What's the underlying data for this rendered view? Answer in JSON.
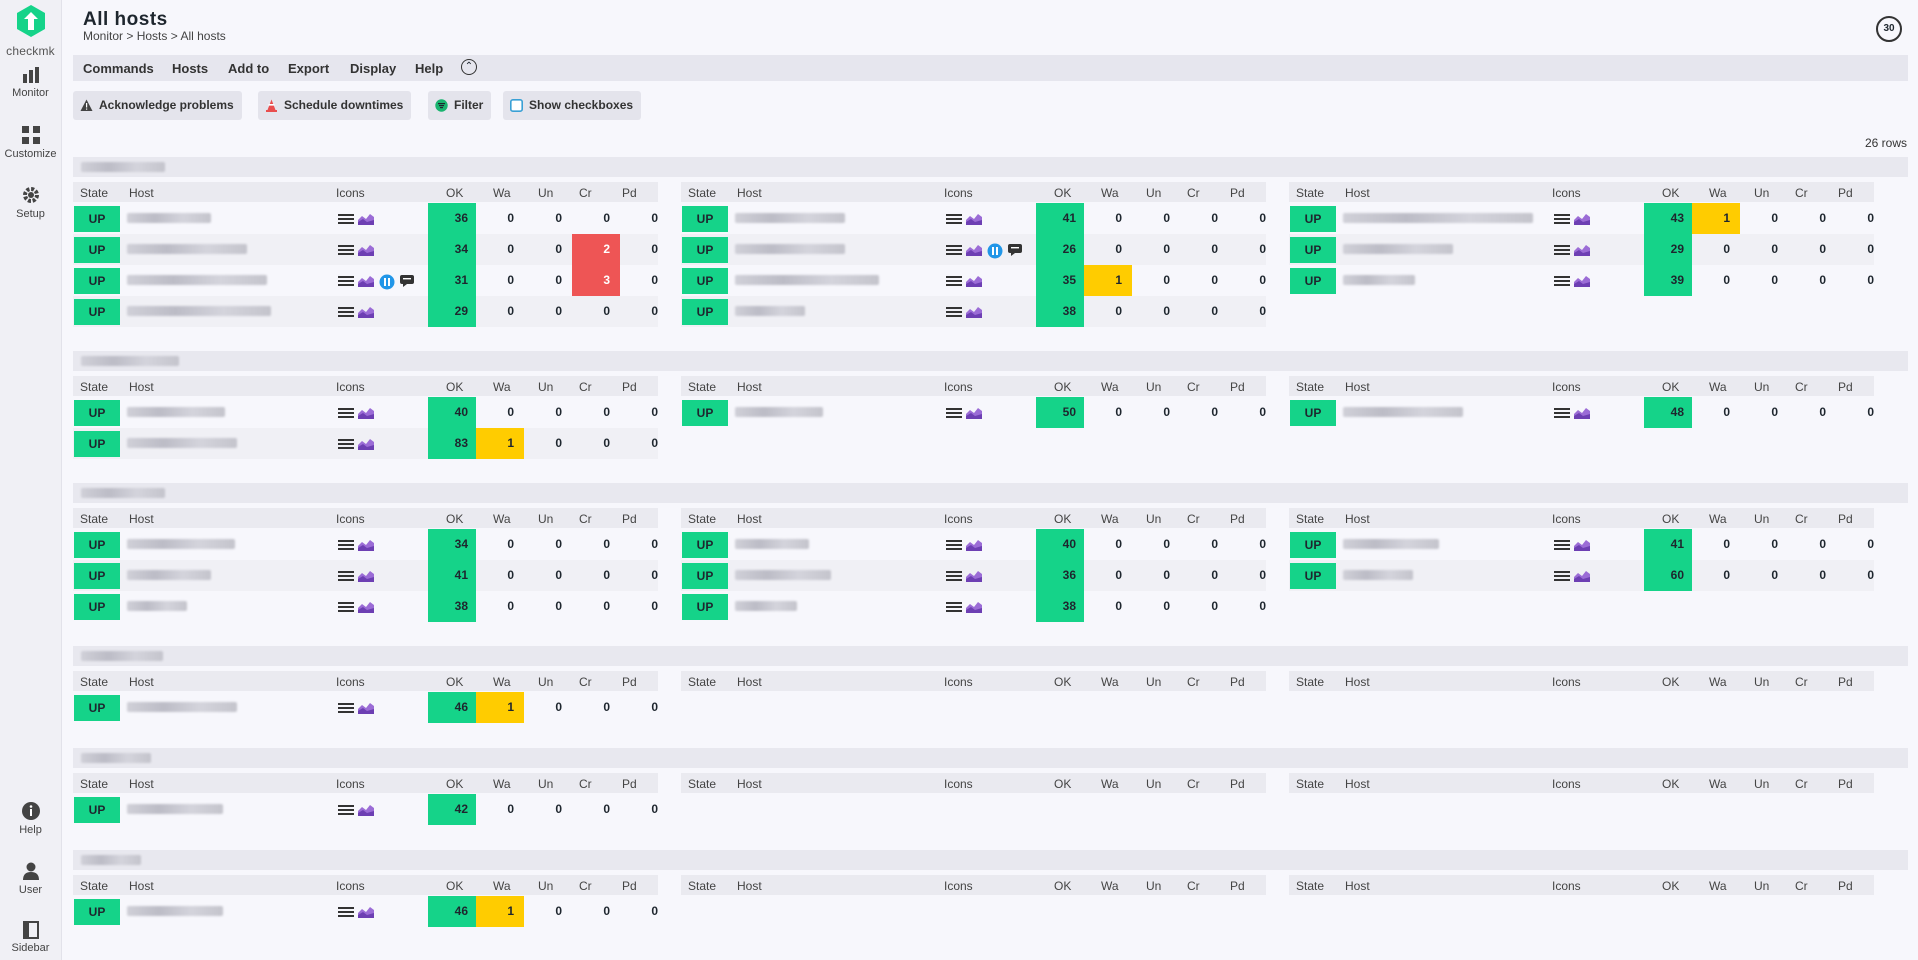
{
  "sidebar": {
    "brand": "checkmk",
    "items": [
      {
        "label": "Monitor",
        "icon": "monitor-icon"
      },
      {
        "label": "Customize",
        "icon": "customize-icon"
      },
      {
        "label": "Setup",
        "icon": "setup-icon"
      },
      {
        "label": "Help",
        "icon": "help-icon"
      },
      {
        "label": "User",
        "icon": "user-icon"
      },
      {
        "label": "Sidebar",
        "icon": "sidebar-icon"
      }
    ]
  },
  "header": {
    "title": "All hosts",
    "breadcrumb": [
      "Monitor",
      "Hosts",
      "All hosts"
    ],
    "breadcrumb_sep": ">",
    "refresh_seconds": "30"
  },
  "menu": [
    "Commands",
    "Hosts",
    "Add to",
    "Export",
    "Display",
    "Help"
  ],
  "actions": [
    "Acknowledge problems",
    "Schedule downtimes",
    "Filter",
    "Show checkboxes"
  ],
  "row_count": "26 rows",
  "columns": [
    "State",
    "Host",
    "Icons",
    "OK",
    "Wa",
    "Un",
    "Cr",
    "Pd"
  ],
  "colors": {
    "ok": "#15d389",
    "warn": "#ffcc00",
    "crit": "#ee5555"
  },
  "groups": [
    {
      "hosts": [
        {
          "state": "UP",
          "ok": "36",
          "wa": "0",
          "un": "0",
          "cr": "0",
          "pd": "0"
        },
        {
          "state": "UP",
          "ok": "34",
          "wa": "0",
          "un": "0",
          "cr": "2",
          "pd": "0"
        },
        {
          "state": "UP",
          "ok": "31",
          "wa": "0",
          "un": "0",
          "cr": "3",
          "pd": "0",
          "extra_icons": true
        },
        {
          "state": "UP",
          "ok": "29",
          "wa": "0",
          "un": "0",
          "cr": "0",
          "pd": "0"
        },
        {
          "state": "UP",
          "ok": "41",
          "wa": "0",
          "un": "0",
          "cr": "0",
          "pd": "0"
        },
        {
          "state": "UP",
          "ok": "26",
          "wa": "0",
          "un": "0",
          "cr": "0",
          "pd": "0",
          "extra_icons": true
        },
        {
          "state": "UP",
          "ok": "35",
          "wa": "1",
          "un": "0",
          "cr": "0",
          "pd": "0"
        },
        {
          "state": "UP",
          "ok": "38",
          "wa": "0",
          "un": "0",
          "cr": "0",
          "pd": "0"
        },
        {
          "state": "UP",
          "ok": "43",
          "wa": "1",
          "un": "0",
          "cr": "0",
          "pd": "0"
        },
        {
          "state": "UP",
          "ok": "29",
          "wa": "0",
          "un": "0",
          "cr": "0",
          "pd": "0"
        },
        {
          "state": "UP",
          "ok": "39",
          "wa": "0",
          "un": "0",
          "cr": "0",
          "pd": "0"
        }
      ]
    },
    {
      "hosts": [
        {
          "state": "UP",
          "ok": "40",
          "wa": "0",
          "un": "0",
          "cr": "0",
          "pd": "0"
        },
        {
          "state": "UP",
          "ok": "83",
          "wa": "1",
          "un": "0",
          "cr": "0",
          "pd": "0"
        },
        {
          "state": "UP",
          "ok": "50",
          "wa": "0",
          "un": "0",
          "cr": "0",
          "pd": "0"
        },
        {
          "state": "UP",
          "ok": "48",
          "wa": "0",
          "un": "0",
          "cr": "0",
          "pd": "0"
        }
      ]
    },
    {
      "hosts": [
        {
          "state": "UP",
          "ok": "34",
          "wa": "0",
          "un": "0",
          "cr": "0",
          "pd": "0"
        },
        {
          "state": "UP",
          "ok": "41",
          "wa": "0",
          "un": "0",
          "cr": "0",
          "pd": "0"
        },
        {
          "state": "UP",
          "ok": "38",
          "wa": "0",
          "un": "0",
          "cr": "0",
          "pd": "0"
        },
        {
          "state": "UP",
          "ok": "40",
          "wa": "0",
          "un": "0",
          "cr": "0",
          "pd": "0"
        },
        {
          "state": "UP",
          "ok": "36",
          "wa": "0",
          "un": "0",
          "cr": "0",
          "pd": "0"
        },
        {
          "state": "UP",
          "ok": "38",
          "wa": "0",
          "un": "0",
          "cr": "0",
          "pd": "0"
        },
        {
          "state": "UP",
          "ok": "41",
          "wa": "0",
          "un": "0",
          "cr": "0",
          "pd": "0"
        },
        {
          "state": "UP",
          "ok": "60",
          "wa": "0",
          "un": "0",
          "cr": "0",
          "pd": "0"
        }
      ]
    },
    {
      "hosts": [
        {
          "state": "UP",
          "ok": "46",
          "wa": "1",
          "un": "0",
          "cr": "0",
          "pd": "0"
        }
      ]
    },
    {
      "hosts": [
        {
          "state": "UP",
          "ok": "42",
          "wa": "0",
          "un": "0",
          "cr": "0",
          "pd": "0"
        }
      ]
    },
    {
      "hosts": [
        {
          "state": "UP",
          "ok": "46",
          "wa": "1",
          "un": "0",
          "cr": "0",
          "pd": "0"
        }
      ]
    }
  ]
}
